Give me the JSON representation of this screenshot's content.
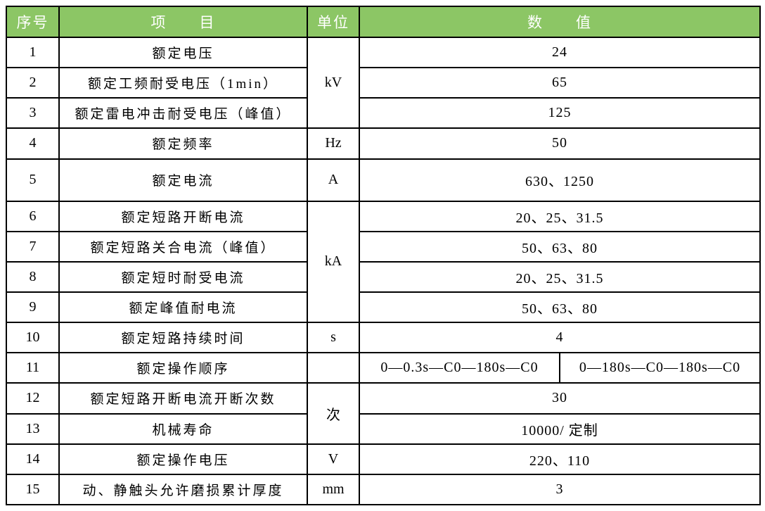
{
  "table": {
    "headers": {
      "no": "序号",
      "item": "项　　目",
      "unit": "单位",
      "value": "数　　值"
    },
    "units": {
      "rows_1_3": "kV",
      "row_4": "Hz",
      "row_5": "A",
      "rows_6_9": "kA",
      "row_10": "s",
      "row_11": "",
      "rows_12_13": "次",
      "row_14": "V",
      "row_15": "mm"
    },
    "rows": [
      {
        "no": "1",
        "item": "额定电压",
        "value": "24"
      },
      {
        "no": "2",
        "item": "额定工频耐受电压（1min）",
        "value": "65"
      },
      {
        "no": "3",
        "item": "额定雷电冲击耐受电压（峰值）",
        "value": "125"
      },
      {
        "no": "4",
        "item": "额定频率",
        "value": "50"
      },
      {
        "no": "5",
        "item": "额定电流",
        "value": "630、1250"
      },
      {
        "no": "6",
        "item": "额定短路开断电流",
        "value": "20、25、31.5"
      },
      {
        "no": "7",
        "item": "额定短路关合电流（峰值）",
        "value": "50、63、80"
      },
      {
        "no": "8",
        "item": "额定短时耐受电流",
        "value": "20、25、31.5"
      },
      {
        "no": "9",
        "item": "额定峰值耐电流",
        "value": "50、63、80"
      },
      {
        "no": "10",
        "item": "额定短路持续时间",
        "value": "4"
      },
      {
        "no": "11",
        "item": "额定操作顺序",
        "value_left": "0—0.3s—C0—180s—C0",
        "value_right": "0—180s—C0—180s—C0"
      },
      {
        "no": "12",
        "item": "额定短路开断电流开断次数",
        "value": "30"
      },
      {
        "no": "13",
        "item": "机械寿命",
        "value": "10000/ 定制"
      },
      {
        "no": "14",
        "item": "额定操作电压",
        "value": "220、110"
      },
      {
        "no": "15",
        "item": "动、静触头允许磨损累计厚度",
        "value": "3"
      }
    ]
  },
  "colors": {
    "header_bg": "#8CC665",
    "header_text": "#FFFFFF",
    "border": "#000000",
    "body_text": "#000000"
  }
}
